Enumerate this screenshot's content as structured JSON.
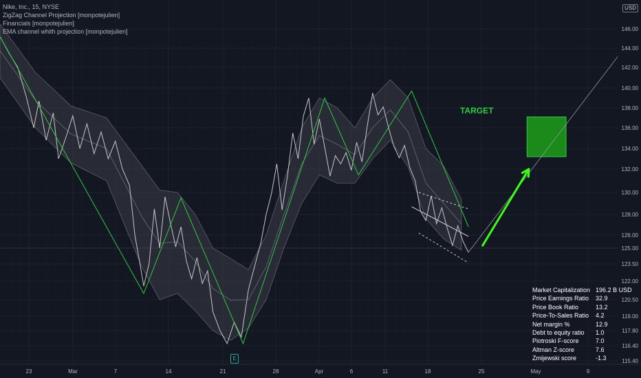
{
  "legend": {
    "symbol": "Nike, Inc., 15, NYSE",
    "indicators": [
      "ZigZag Channel Projection [monpotejulien]",
      "Financials [monpotejulien]",
      "EMA channel whith projection [monpotejulien]"
    ]
  },
  "currency_badge": "USD",
  "target_label": "TARGET",
  "earnings_badge": "E",
  "colors": {
    "background": "#131722",
    "price_line": "#c8c8c8",
    "zigzag": "#2ecc40",
    "target_box": "#1b8a1b",
    "arrow": "#39ff14",
    "channel_fill": "#3a3d47",
    "grid": "#1e222d"
  },
  "financials": [
    {
      "label": "Market Capitalization",
      "value": "196.2 B  USD"
    },
    {
      "label": "Price Earnings Ratio",
      "value": "32.9"
    },
    {
      "label": "Price Book Ratio",
      "value": "13.2"
    },
    {
      "label": "Price-To-Sales Ratio",
      "value": "4.2"
    },
    {
      "label": "Net margin %",
      "value": "12.9"
    },
    {
      "label": "Debt to equity ratio",
      "value": "1.0"
    },
    {
      "label": "Piotroski F-score",
      "value": "7.0"
    },
    {
      "label": "Altman Z-score",
      "value": "7.6"
    },
    {
      "label": "Zmijewski score",
      "value": "-1.3"
    }
  ],
  "chart_data": {
    "type": "line",
    "ylim": [
      115.4,
      147.2
    ],
    "y_ticks": [
      "146.00",
      "144.00",
      "142.00",
      "140.00",
      "138.00",
      "136.00",
      "134.00",
      "132.00",
      "130.00",
      "128.00",
      "126.00",
      "125.00",
      "123.50",
      "122.00",
      "120.50",
      "119.00",
      "117.80",
      "116.40",
      "115.40"
    ],
    "x_ticks": [
      "23",
      "Mar",
      "7",
      "14",
      "21",
      "28",
      "Apr",
      "6",
      "11",
      "18",
      "25",
      "May",
      "9"
    ],
    "zigzag": [
      {
        "x": 0,
        "y": 145.2
      },
      {
        "x": 8.1,
        "y": 121.0
      },
      {
        "x": 10.2,
        "y": 129.5
      },
      {
        "x": 13.7,
        "y": 116.6
      },
      {
        "x": 18.3,
        "y": 139.0
      },
      {
        "x": 20.2,
        "y": 131.5
      },
      {
        "x": 23.2,
        "y": 139.7
      },
      {
        "x": 26.4,
        "y": 126.8
      }
    ],
    "price": [
      [
        0,
        145.2
      ],
      [
        0.5,
        143.5
      ],
      [
        1.0,
        142.0
      ],
      [
        1.5,
        139.0
      ],
      [
        1.9,
        136.0
      ],
      [
        2.2,
        138.7
      ],
      [
        2.6,
        134.8
      ],
      [
        3.0,
        137.5
      ],
      [
        3.3,
        133.0
      ],
      [
        3.7,
        135.0
      ],
      [
        4.1,
        137.2
      ],
      [
        4.5,
        134.0
      ],
      [
        4.9,
        136.4
      ],
      [
        5.3,
        133.5
      ],
      [
        5.7,
        135.6
      ],
      [
        6.1,
        133.0
      ],
      [
        6.5,
        134.7
      ],
      [
        6.9,
        132.0
      ],
      [
        7.3,
        130.6
      ],
      [
        7.6,
        126.0
      ],
      [
        7.9,
        123.4
      ],
      [
        8.1,
        121.6
      ],
      [
        8.4,
        123.5
      ],
      [
        8.7,
        128.5
      ],
      [
        9.0,
        125.0
      ],
      [
        9.3,
        129.6
      ],
      [
        9.6,
        127.2
      ],
      [
        9.9,
        125.1
      ],
      [
        10.2,
        126.8
      ],
      [
        10.5,
        123.8
      ],
      [
        10.8,
        122.2
      ],
      [
        11.1,
        124.1
      ],
      [
        11.4,
        121.8
      ],
      [
        11.7,
        122.9
      ],
      [
        12.0,
        119.4
      ],
      [
        12.4,
        117.8
      ],
      [
        12.8,
        116.6
      ],
      [
        13.2,
        118.5
      ],
      [
        13.6,
        117.2
      ],
      [
        14.0,
        121.3
      ],
      [
        14.4,
        123.6
      ],
      [
        14.7,
        125.4
      ],
      [
        15.0,
        128.0
      ],
      [
        15.3,
        129.9
      ],
      [
        15.6,
        132.5
      ],
      [
        15.9,
        128.4
      ],
      [
        16.2,
        131.4
      ],
      [
        16.5,
        135.5
      ],
      [
        16.8,
        133.0
      ],
      [
        17.1,
        137.2
      ],
      [
        17.4,
        139.0
      ],
      [
        17.7,
        134.4
      ],
      [
        18.0,
        136.9
      ],
      [
        18.3,
        134.1
      ],
      [
        18.6,
        131.4
      ],
      [
        18.9,
        133.3
      ],
      [
        19.2,
        132.5
      ],
      [
        19.5,
        133.6
      ],
      [
        19.8,
        131.9
      ],
      [
        20.1,
        134.6
      ],
      [
        20.4,
        132.7
      ],
      [
        20.7,
        136.2
      ],
      [
        21.0,
        139.5
      ],
      [
        21.3,
        137.3
      ],
      [
        21.6,
        138.1
      ],
      [
        21.9,
        136.0
      ],
      [
        22.2,
        134.2
      ],
      [
        22.5,
        133.1
      ],
      [
        22.8,
        134.3
      ],
      [
        23.1,
        132.1
      ],
      [
        23.4,
        131.0
      ],
      [
        23.7,
        128.3
      ],
      [
        24.0,
        127.4
      ],
      [
        24.3,
        129.7
      ],
      [
        24.6,
        127.1
      ],
      [
        24.9,
        128.6
      ],
      [
        25.2,
        126.7
      ],
      [
        25.5,
        125.2
      ],
      [
        25.8,
        126.9
      ],
      [
        26.1,
        125.5
      ],
      [
        26.4,
        124.6
      ]
    ],
    "ema_upper": [
      [
        0,
        146.5
      ],
      [
        2,
        141.5
      ],
      [
        4,
        138.2
      ],
      [
        6,
        137.0
      ],
      [
        8,
        132.3
      ],
      [
        9,
        130.2
      ],
      [
        10,
        130.0
      ],
      [
        11,
        128.0
      ],
      [
        12,
        125.0
      ],
      [
        13,
        124.0
      ],
      [
        14,
        123.0
      ],
      [
        15,
        126.0
      ],
      [
        16,
        131.0
      ],
      [
        17,
        136.0
      ],
      [
        18,
        139.0
      ],
      [
        19,
        138.0
      ],
      [
        20,
        136.0
      ],
      [
        21,
        139.0
      ],
      [
        22,
        140.8
      ],
      [
        23,
        139.0
      ],
      [
        24,
        134.0
      ],
      [
        25,
        132.3
      ],
      [
        26,
        129.4
      ]
    ],
    "ema_lower": [
      [
        0,
        141.0
      ],
      [
        2,
        136.0
      ],
      [
        4,
        132.6
      ],
      [
        6,
        131.0
      ],
      [
        8,
        123.2
      ],
      [
        9,
        120.5
      ],
      [
        10,
        121.0
      ],
      [
        11,
        119.5
      ],
      [
        12,
        117.8
      ],
      [
        13,
        116.9
      ],
      [
        14,
        118.0
      ],
      [
        15,
        120.5
      ],
      [
        16,
        125.0
      ],
      [
        17,
        129.0
      ],
      [
        18,
        131.5
      ],
      [
        19,
        130.8
      ],
      [
        20,
        130.8
      ],
      [
        21,
        133.0
      ],
      [
        22,
        134.8
      ],
      [
        23,
        132.2
      ],
      [
        24,
        127.6
      ],
      [
        25,
        125.7
      ],
      [
        26,
        124.8
      ]
    ],
    "projection_channel": {
      "upper": [
        [
          23.6,
          130.0
        ],
        [
          26.4,
          128.5
        ]
      ],
      "lower": [
        [
          23.6,
          126.2
        ],
        [
          26.4,
          123.6
        ]
      ],
      "mid": [
        [
          23.2,
          128.7
        ],
        [
          26.4,
          125.9
        ]
      ]
    },
    "target_box": {
      "x0": 29.7,
      "x1": 31.9,
      "y0": 133.2,
      "y1": 137.1
    },
    "trend_line": [
      [
        26.4,
        124.6
      ],
      [
        36.5,
        147.2
      ]
    ],
    "arrow": [
      [
        27.2,
        125.2
      ],
      [
        29.8,
        132.0
      ]
    ],
    "horizontal_line": 125.0
  }
}
